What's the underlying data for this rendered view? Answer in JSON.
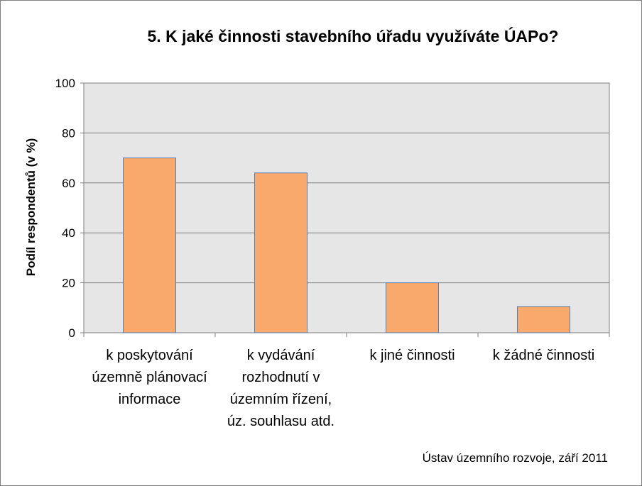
{
  "chart_data": {
    "type": "bar",
    "title": "5. K jaké činnosti stavebního úřadu využíváte ÚAPo?",
    "xlabel": "",
    "ylabel": "Podíl respondentů (v %)",
    "ylim": [
      0,
      100
    ],
    "yticks": [
      0,
      20,
      40,
      60,
      80,
      100
    ],
    "categories": [
      [
        "k poskytování",
        "územně plánovací",
        "informace"
      ],
      [
        "k vydávání",
        "rozhodnutí v",
        "územním řízení,",
        "úz. souhlasu atd."
      ],
      [
        "k jiné činnosti"
      ],
      [
        "k žádné činnosti"
      ]
    ],
    "values": [
      70,
      64,
      20,
      10.5
    ],
    "grid": true,
    "legend": "none",
    "colors": {
      "bar_fill": "#f9a96b",
      "bar_stroke": "#4f81bd",
      "plot_bg": "#e6e6e6",
      "gridline": "#7f7f7f"
    },
    "source_note": "Ústav územního rozvoje, září 2011"
  }
}
